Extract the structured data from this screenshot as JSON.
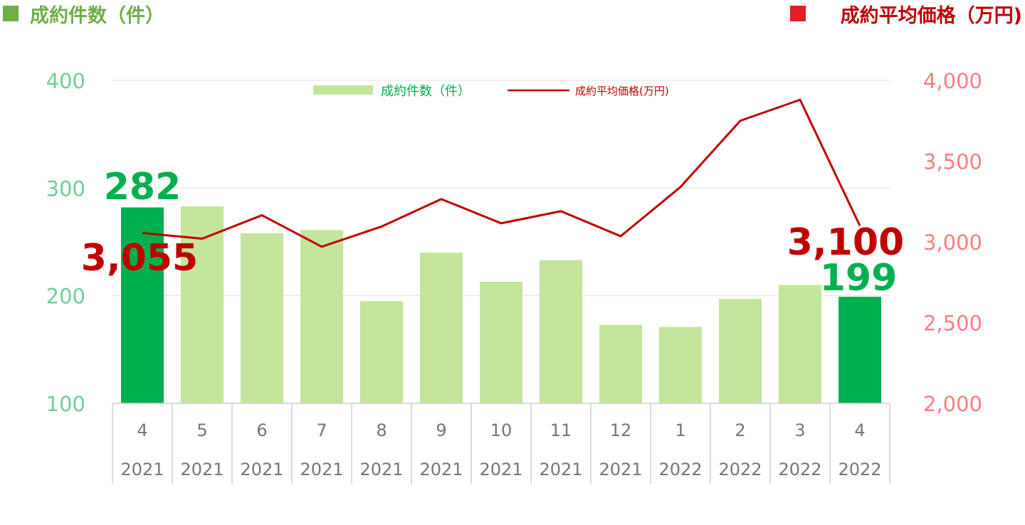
{
  "chart_data": {
    "type": "bar",
    "header_left": "成約件数（件）",
    "header_right": "成約平均価格（万円)",
    "categories": [
      {
        "month": "4",
        "year": "2021"
      },
      {
        "month": "5",
        "year": "2021"
      },
      {
        "month": "6",
        "year": "2021"
      },
      {
        "month": "7",
        "year": "2021"
      },
      {
        "month": "8",
        "year": "2021"
      },
      {
        "month": "9",
        "year": "2021"
      },
      {
        "month": "10",
        "year": "2021"
      },
      {
        "month": "11",
        "year": "2021"
      },
      {
        "month": "12",
        "year": "2021"
      },
      {
        "month": "1",
        "year": "2022"
      },
      {
        "month": "2",
        "year": "2022"
      },
      {
        "month": "3",
        "year": "2022"
      },
      {
        "month": "4",
        "year": "2022"
      }
    ],
    "series": [
      {
        "name": "成約件数（件）",
        "type": "bar",
        "axis": "left",
        "values": [
          282,
          283,
          258,
          261,
          195,
          240,
          213,
          233,
          173,
          171,
          197,
          210,
          199
        ],
        "highlight": [
          0,
          12
        ]
      },
      {
        "name": "成約平均価格(万円)",
        "type": "line",
        "axis": "right",
        "values": [
          3055,
          3020,
          3165,
          2970,
          3095,
          3265,
          3115,
          3190,
          3035,
          3340,
          3750,
          3880,
          3100
        ]
      }
    ],
    "y_left": {
      "min": 100,
      "max": 400,
      "ticks": [
        "100",
        "200",
        "300",
        "400"
      ]
    },
    "y_right": {
      "min": 2000,
      "max": 4000,
      "ticks": [
        "2,000",
        "2,500",
        "3,000",
        "3,500",
        "4,000"
      ]
    },
    "data_labels": {
      "bar_first": "282",
      "bar_last": "199",
      "line_first": "3,055",
      "line_last": "3,100"
    },
    "legend": {
      "position": "top-center",
      "bar_label": "成約件数（件）",
      "line_label": "成約平均価格(万円)"
    },
    "grid": true,
    "colors": {
      "bar": "#c3e59c",
      "bar_highlight": "#00b050",
      "line": "#c00000",
      "left_axis": "#6fcf97",
      "right_axis": "#ff7c80",
      "header_left": "#70ad47",
      "header_right": "#c00000",
      "grid": "#e0e0e0",
      "category_text": "#767676"
    }
  }
}
